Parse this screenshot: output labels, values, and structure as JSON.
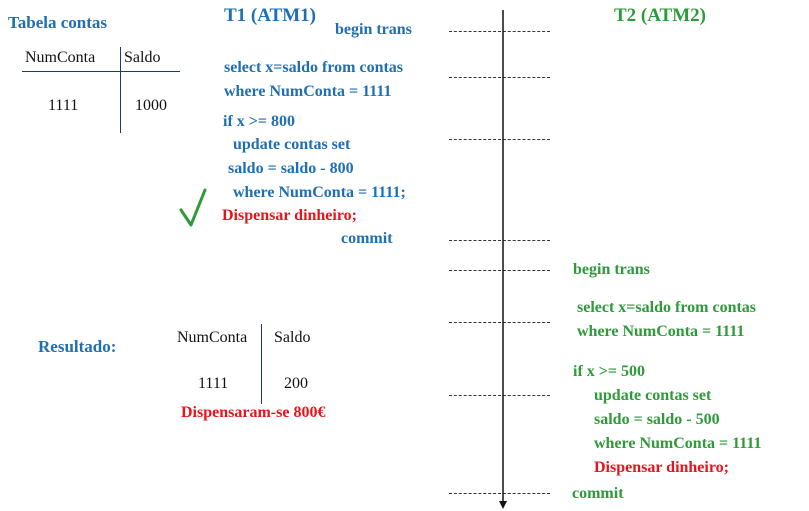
{
  "table_before": {
    "title": "Tabela contas",
    "headers": [
      "NumConta",
      "Saldo"
    ],
    "row": [
      "1111",
      "1000"
    ]
  },
  "t1": {
    "title": "T1 (ATM1)",
    "begin": "begin trans",
    "lines": [
      "select x=saldo from contas",
      "where NumConta = 1111",
      "if x >= 800",
      "update contas set",
      "saldo = saldo - 800",
      "where NumConta = 1111;",
      "Dispensar dinheiro;",
      "commit"
    ]
  },
  "t2": {
    "title": "T2 (ATM2)",
    "lines": [
      "begin trans",
      "select x=saldo from contas",
      "where NumConta = 1111",
      "if x >= 500",
      "update contas set",
      "saldo = saldo - 500",
      "where NumConta = 1111",
      "Dispensar dinheiro;",
      "commit"
    ]
  },
  "result": {
    "label": "Resultado:",
    "headers": [
      "NumConta",
      "Saldo"
    ],
    "row": [
      "1111",
      "200"
    ],
    "note": "Dispensaram-se 800€"
  },
  "colors": {
    "blue": "#1f6fb2",
    "green": "#2e9a3a",
    "red": "#e8141b"
  },
  "icons": [
    "check-mark-icon",
    "timeline-arrow-icon"
  ]
}
